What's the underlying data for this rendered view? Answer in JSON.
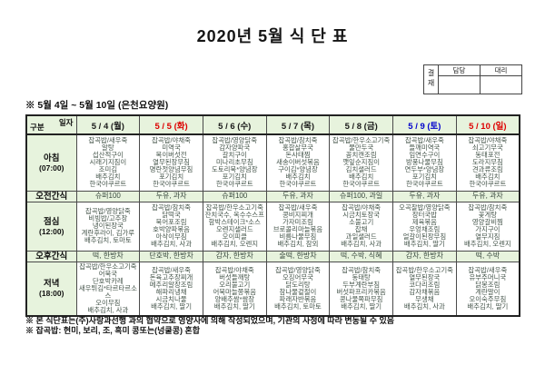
{
  "title": "2020년 5월 식 단 표",
  "approval": {
    "label": "결재",
    "columns": [
      "담당",
      "대리"
    ]
  },
  "subtitle": "※ 5월 4일 ~ 5월 10일 (은천요양원)",
  "colors": {
    "header_green": "#e7f3dd",
    "date_default": "#1a1a1a",
    "date_red": "#dd0000",
    "date_blue": "#0000cc",
    "menu_text": "#44544a"
  },
  "table": {
    "corner": {
      "top": "일자",
      "bottom": "구분"
    },
    "days": [
      {
        "label": "5 / 4 (월)",
        "color": "#1a1a1a"
      },
      {
        "label": "5 / 5 (화)",
        "color": "#dd0000"
      },
      {
        "label": "5 / 6 (수)",
        "color": "#1a1a1a"
      },
      {
        "label": "5 / 7 (목)",
        "color": "#1a1a1a"
      },
      {
        "label": "5 / 8 (금)",
        "color": "#1a1a1a"
      },
      {
        "label": "5 / 9 (토)",
        "color": "#0000cc"
      },
      {
        "label": "5 / 10 (일)",
        "color": "#dd0000"
      }
    ],
    "rows": [
      {
        "key": "breakfast",
        "label": "아침",
        "time": "(07:00)",
        "type": "meal",
        "cells": [
          [
            "잡곡밥/새우죽",
            "알탕",
            "섭산적구이",
            "시래기지짐이",
            "조미김",
            "배추김치",
            "한국야쿠르트"
          ],
          [
            "잡곡밥/야채죽",
            "미역국",
            "목이버섯전",
            "열무된장무침",
            "명란젓양념무침",
            "포기김치",
            "한국야쿠르트"
          ],
          [
            "잡곡밥/영양닭죽",
            "감자양파국",
            "갈치구이",
            "미나리초무침",
            "도토리묵*양념장",
            "포기김치",
            "한국야쿠르트"
          ],
          [
            "잡곡밥/참치죽",
            "홍합살무국",
            "돈사태찜",
            "새송이버섯볶음",
            "구이김*양념장",
            "배추김치",
            "한국야쿠르트"
          ],
          [
            "잡곡밥/한우소고기죽",
            "물만두국",
            "꽁치캔조림",
            "깻잎순지짐이",
            "김치샐러드",
            "배추김치",
            "한국야쿠르트"
          ],
          [
            "잡곡밥/새우죽",
            "들깨미역국",
            "임연수구이",
            "방풍나물무침",
            "연두부*양념장",
            "포기김치",
            "한국야쿠르트"
          ],
          [
            "잡곡밥/야채죽",
            "쇠고기무국",
            "동태포전",
            "도라지무침",
            "견과류조림",
            "배추김치",
            "한국야쿠르트"
          ]
        ]
      },
      {
        "key": "morning-snack",
        "label": "오전간식",
        "type": "snack",
        "cells": [
          [
            "슈퍼100"
          ],
          [
            "두유, 과자"
          ],
          [
            "슈퍼100"
          ],
          [
            "두유, 과자"
          ],
          [
            "슈퍼100, 과일"
          ],
          [
            "두유, 과자"
          ],
          [
            "두유, 과자"
          ]
        ]
      },
      {
        "key": "lunch",
        "label": "점심",
        "time": "(12:00)",
        "type": "meal",
        "cells": [
          [
            "잡곡밥/영양닭죽",
            "비빔밥/고추장",
            "냉이된장국",
            "계란후라이, 김가루",
            "배추김치, 토마토"
          ],
          [
            "잡곡밥/참치죽",
            "닭떡국",
            "북어포조림",
            "호박양파볶음",
            "아삭이무침",
            "배추김치, 사과"
          ],
          [
            "잡곡밥/한우소고기죽",
            "잔치국수, 옥수수스프",
            "함박스테이크*소스",
            "오렌지샐러드",
            "오이피클",
            "배추김치, 오렌지"
          ],
          [
            "잡곡밥/새우죽",
            "콩비지찌개",
            "가자미조림",
            "브로콜리마늘볶음",
            "비름나물무침",
            "배추김치, 참외"
          ],
          [
            "잡곡밥/야채죽",
            "시금치토장국",
            "소불고기",
            "잡채",
            "과일샐러드",
            "배추김치, 사과"
          ],
          [
            "오곡찰밥/영양닭죽",
            "장터국밥",
            "제육볶음",
            "우엉채조림",
            "얼갈이된장무침",
            "배추김치, 딸기"
          ],
          [
            "잡곡밥/참치죽",
            "꽃게탕",
            "영양갈비찜",
            "가지구이",
            "열무지짐",
            "배추김치, 오렌지"
          ]
        ]
      },
      {
        "key": "afternoon-snack",
        "label": "오후간식",
        "type": "snack",
        "cells": [
          [
            "떡, 한방차"
          ],
          [
            "단호박, 한방차"
          ],
          [
            "감자, 한방차"
          ],
          [
            "술떡, 한방차"
          ],
          [
            "떡, 수박, 식혜"
          ],
          [
            "감자, 한방차"
          ],
          [
            "떡, 수박"
          ]
        ]
      },
      {
        "key": "dinner",
        "label": "저녁",
        "time": "(18:00)",
        "type": "meal",
        "cells": [
          [
            "잡곡밥/한우소고기죽",
            "어묵국",
            "단호박카레",
            "새우튀김*타르타르소스",
            "오이무침",
            "배추김치, 사과"
          ],
          [
            "잡곡밥/새우죽",
            "돈육고추장찌개",
            "메추리알장조림",
            "해파리냉채",
            "시금치나물",
            "배추김치, 딸기"
          ],
          [
            "잡곡밥/야채죽",
            "버섯들깨탕",
            "오리불고기",
            "어묵마늘쫑볶음",
            "양배추쌈*쌈장",
            "배추김치, 딸기"
          ],
          [
            "잡곡밥/영양닭죽",
            "오징어무국",
            "닭도리탕",
            "참나물겉절이",
            "파래자반볶음",
            "배추김치, 토마토"
          ],
          [
            "잡곡밥/참치죽",
            "동태탕",
            "두부계란부침",
            "버섯파프리카볶음",
            "콩나물쪽파무침",
            "배추김치, 딸기"
          ],
          [
            "잡곡밥/한우소고기죽",
            "열무된장국",
            "코다리조림",
            "감자채볶음",
            "무생채",
            "배추김치, 사과"
          ],
          [
            "잡곡밥/새우죽",
            "유부주머니국",
            "닭봉조림",
            "계란말이",
            "오이숙주무침",
            "배추김치, 딸기"
          ]
        ]
      }
    ]
  },
  "footnotes": [
    "※ 본 식단표는(주)사랑과선행 과의 협약으로 영양사에 의해 작성되었으며, 기관의 사정에 따라 변동될 수 있음",
    "※ 잡곡밥: 현미, 보리, 조, 흑미 콩또는(넝쿨콩) 혼합"
  ]
}
